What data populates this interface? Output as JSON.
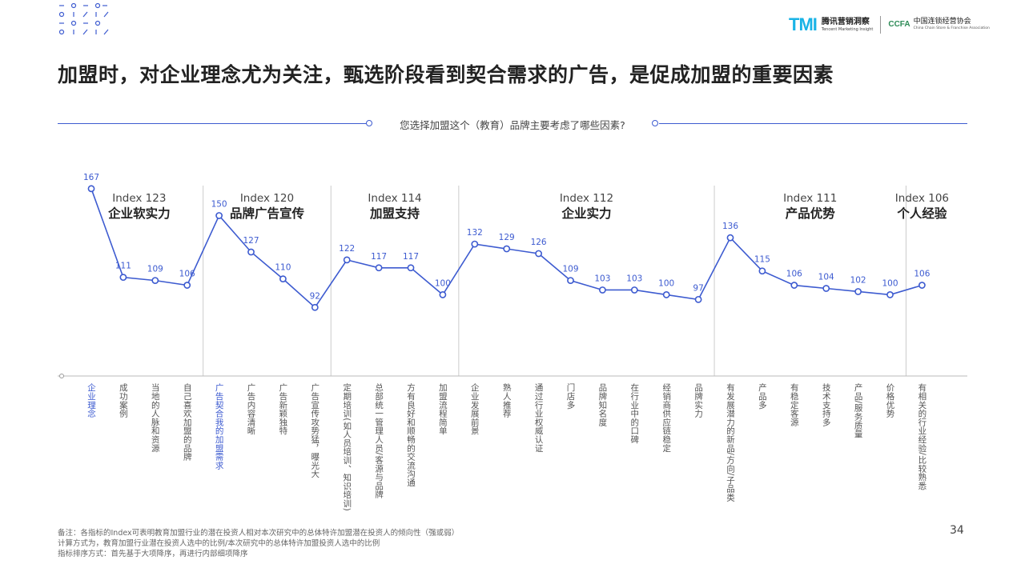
{
  "header": {
    "logo_tmi": "TMI",
    "logo_tmi_cn": "腾讯营销洞察",
    "logo_tmi_en": "Tencent Marketing Insight",
    "logo_ccfa": "CCFA",
    "logo_ccfa_cn": "中国连锁经营协会",
    "logo_ccfa_en": "China Chain Store & Franchise Association"
  },
  "title": "加盟时，对企业理念尤为关注，甄选阶段看到契合需求的广告，是促成加盟的重要因素",
  "question": "您选择加盟这个（教育）品牌主要考虑了哪些因素?",
  "colors": {
    "accent": "#3d5bd0",
    "highlight": "#3d5bd0",
    "label": "#555555",
    "divider": "#cccccc"
  },
  "chart_data": {
    "type": "line",
    "ylim": [
      80,
      175
    ],
    "groups": [
      {
        "index_label": "Index 123",
        "name": "企业软实力",
        "start": 0,
        "count": 4
      },
      {
        "index_label": "Index 120",
        "name": "品牌广告宣传",
        "start": 4,
        "count": 4
      },
      {
        "index_label": "Index 114",
        "name": "加盟支持",
        "start": 8,
        "count": 4
      },
      {
        "index_label": "Index 112",
        "name": "企业实力",
        "start": 12,
        "count": 8
      },
      {
        "index_label": "Index 111",
        "name": "产品优势",
        "start": 20,
        "count": 6
      },
      {
        "index_label": "Index 106",
        "name": "个人经验",
        "start": 26,
        "count": 1
      }
    ],
    "categories": [
      "企业理念",
      "成功案例",
      "当地的人脉和资源",
      "自己喜欢加盟的品牌",
      "广告契合我的加盟需求",
      "广告内容清晰",
      "广告新颖独特",
      "广告宣传攻势猛，曝光大",
      "定期培训(如人员培训、知识培训)",
      "总部统一管理人员/客源与品牌",
      "方有良好和顺畅的交流沟通",
      "加盟流程简单",
      "企业发展前景",
      "熟人推荐",
      "通过行业权威认证",
      "门店多",
      "品牌知名度",
      "在行业中的口碑",
      "经销商供应链稳定",
      "品牌实力",
      "有发展潜力的新品/方向/子品类",
      "产品多",
      "有稳定客源",
      "技术支持多",
      "产品/服务质量",
      "价格优势",
      "有相关的行业经验/比较熟悉"
    ],
    "values": [
      167,
      111,
      109,
      106,
      150,
      127,
      110,
      92,
      122,
      117,
      117,
      100,
      132,
      129,
      126,
      109,
      103,
      103,
      100,
      97,
      136,
      115,
      106,
      104,
      102,
      100,
      106
    ],
    "highlighted": [
      0,
      4
    ]
  },
  "footer": {
    "note1": "备注：各指标的Index可表明教育加盟行业的潜在投资人相对本次研究中的总体特许加盟潜在投资人的倾向性（强或弱）",
    "note2": "计算方式为，教育加盟行业潜在投资人选中的比例/本次研究中的总体特许加盟投资人选中的比例",
    "note3": "指标排序方式：首先基于大项降序，再进行内部细项降序",
    "page": "34"
  }
}
